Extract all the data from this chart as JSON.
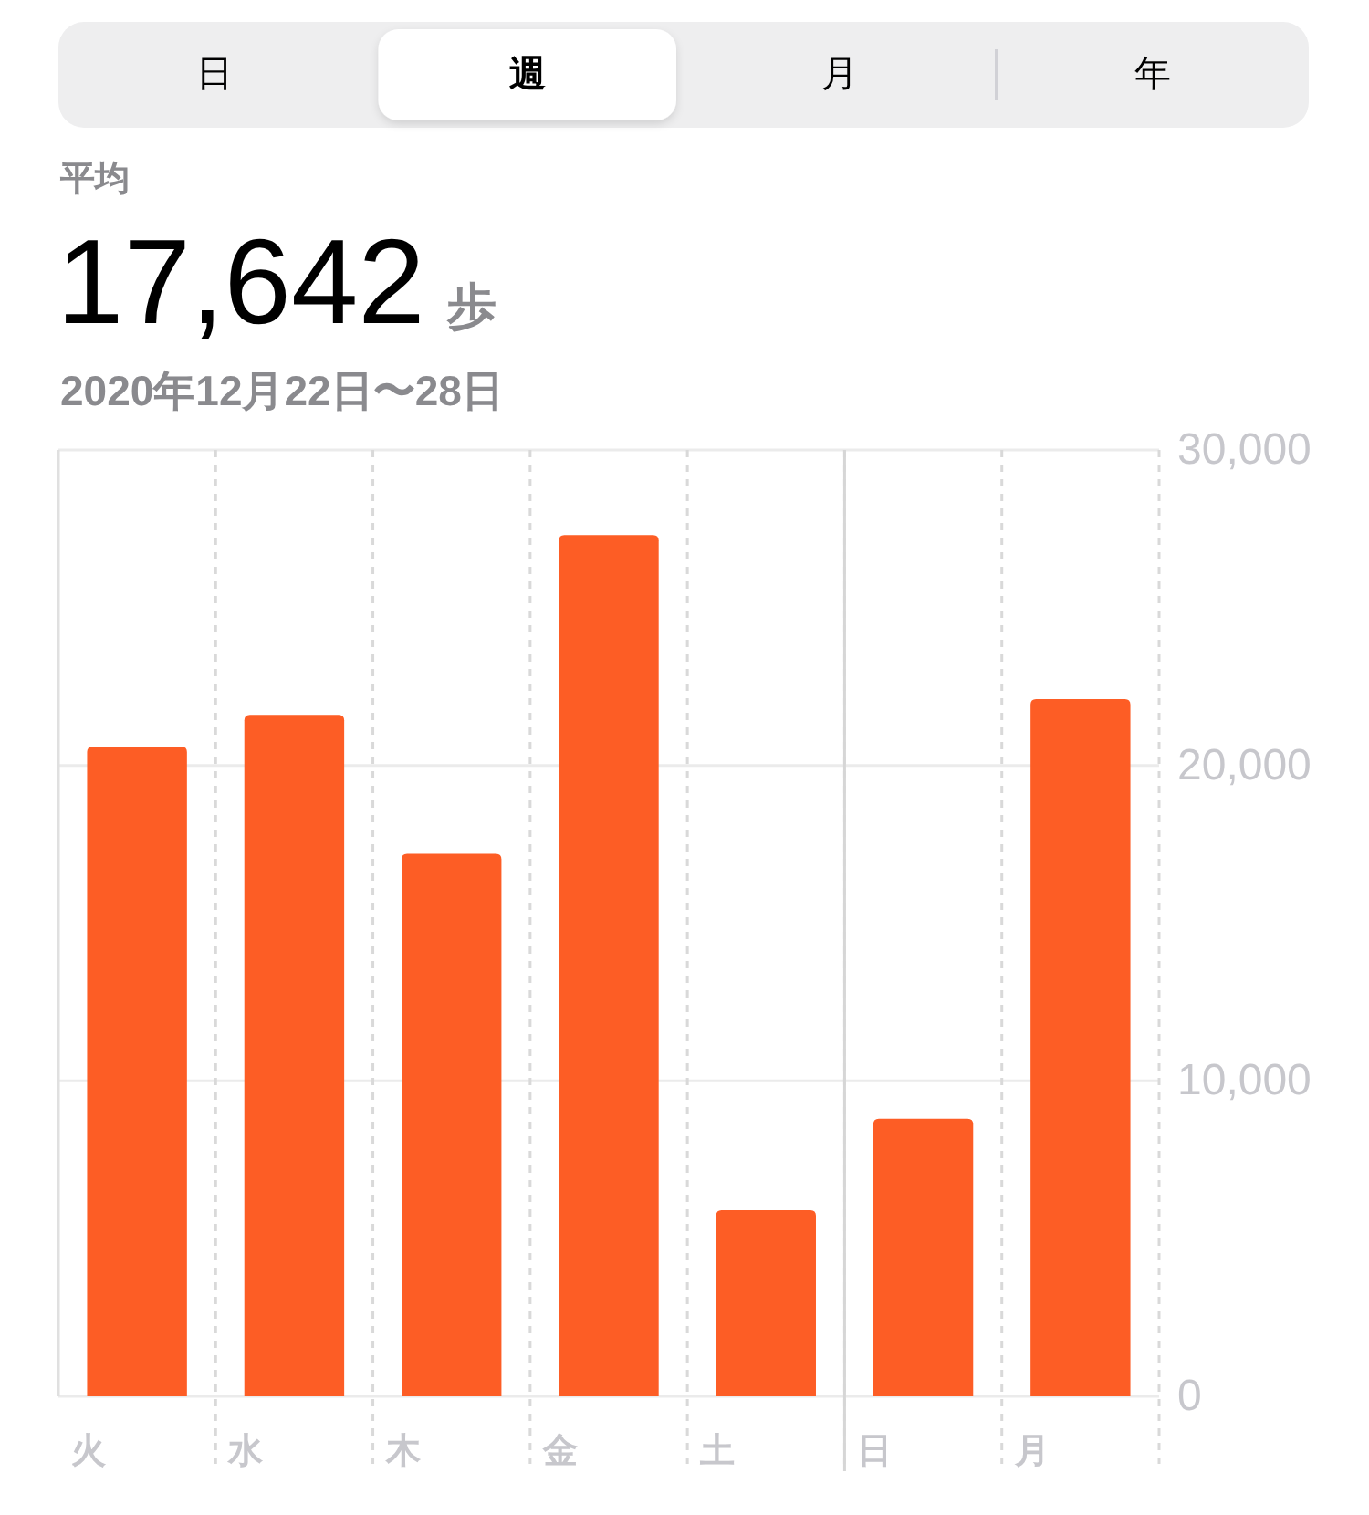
{
  "chart_data": {
    "type": "bar",
    "title": "平均",
    "subtitle": "2020年12月22日〜28日",
    "annotations": [
      "日",
      "週",
      "月",
      "年",
      "17,642",
      "歩"
    ],
    "categories": [
      "火",
      "水",
      "木",
      "金",
      "土",
      "日",
      "月"
    ],
    "values": [
      20600,
      21600,
      17200,
      27300,
      5900,
      8800,
      22100
    ],
    "color": "#fd5d25",
    "ylim": [
      0,
      30000
    ],
    "yticks": [
      0,
      {
        "value": 10000,
        "label": "10,000"
      },
      {
        "value": 20000,
        "label": "20,000"
      },
      {
        "value": 30000,
        "label": "30,000"
      }
    ],
    "grid": true,
    "ref_lines": [
      {
        "axis": "x",
        "value": "日",
        "line_style": "solid"
      }
    ]
  }
}
